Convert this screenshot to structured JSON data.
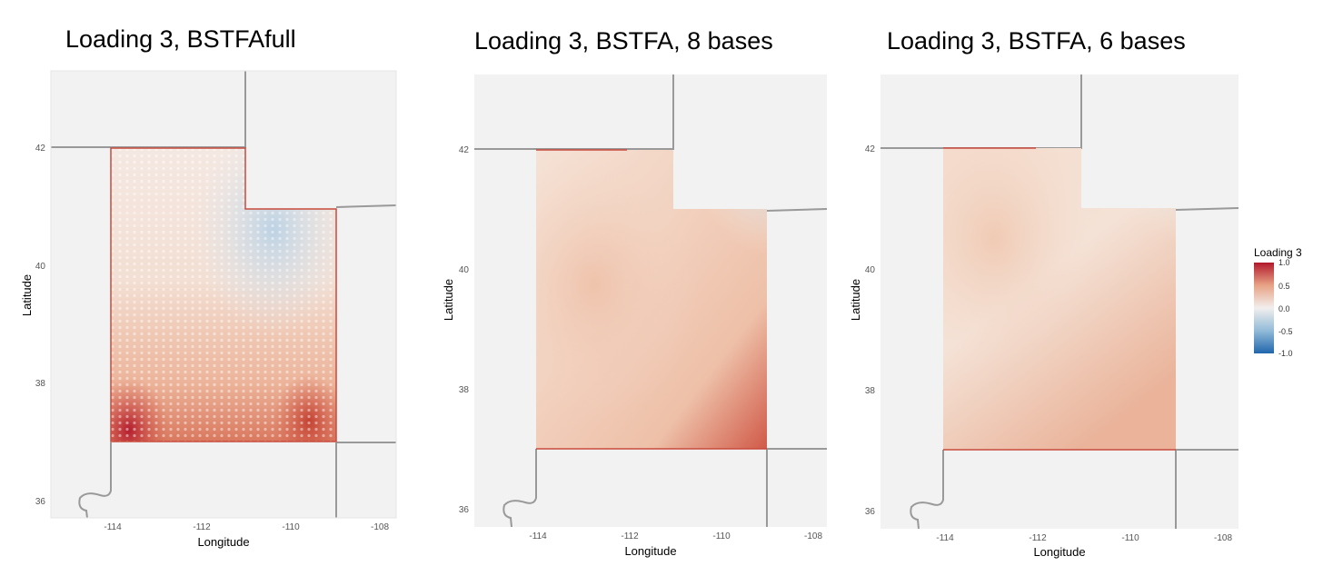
{
  "panels": [
    {
      "id": "full",
      "title": "Loading 3, BSTFAfull",
      "xlabel": "Longitude",
      "ylabel": "Latitude",
      "xticks": [
        "-114",
        "-112",
        "-110",
        "-108"
      ],
      "yticks": [
        "42",
        "40",
        "38",
        "36"
      ]
    },
    {
      "id": "b8",
      "title": "Loading 3, BSTFA, 8 bases",
      "xlabel": "Longitude",
      "ylabel": "Latitude",
      "xticks": [
        "-114",
        "-112",
        "-110",
        "-108"
      ],
      "yticks": [
        "42",
        "40",
        "38",
        "36"
      ]
    },
    {
      "id": "b6",
      "title": "Loading 3, BSTFA, 6 bases",
      "xlabel": "Longitude",
      "ylabel": "Latitude",
      "xticks": [
        "-114",
        "-112",
        "-110",
        "-108"
      ],
      "yticks": [
        "42",
        "40",
        "38",
        "36"
      ]
    }
  ],
  "legend": {
    "title": "Loading 3",
    "ticks": [
      "1.0",
      "0.5",
      "0.0",
      "-0.5",
      "-1.0"
    ],
    "colors": {
      "high": "#b2182b",
      "mid": "#f7f7f7",
      "low": "#2166ac"
    }
  },
  "colors": {
    "panel_bg": "#f2f2f2",
    "border": "#999999",
    "state_outline": "#c84a3c"
  }
}
